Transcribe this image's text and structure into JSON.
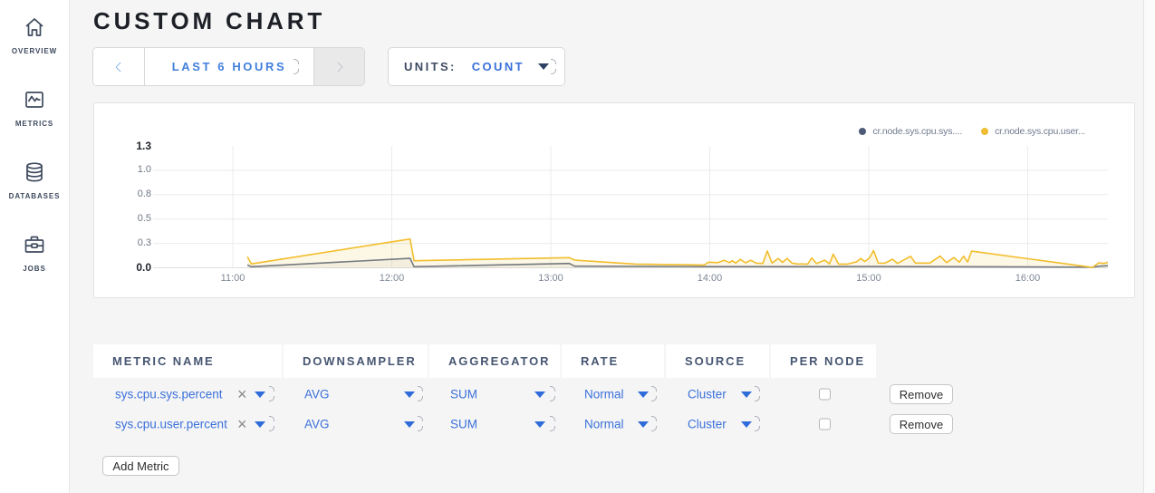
{
  "sidebar": {
    "items": [
      {
        "label": "OVERVIEW",
        "icon": "home-icon"
      },
      {
        "label": "METRICS",
        "icon": "metrics-icon"
      },
      {
        "label": "DATABASES",
        "icon": "database-icon"
      },
      {
        "label": "JOBS",
        "icon": "briefcase-icon"
      }
    ]
  },
  "header": {
    "title": "CUSTOM CHART"
  },
  "toolbar": {
    "time_range": {
      "label": "LAST 6 HOURS"
    },
    "units": {
      "label": "UNITS:",
      "value": "COUNT"
    }
  },
  "colors": {
    "accent_blue": "#3a70d9",
    "navy_text": "#3e4a5e",
    "title_text": "#1d2026",
    "series_yellow": "#f2be2c",
    "series_slate": "#64718c",
    "page_background": "#f5f5f6"
  },
  "chart_data": {
    "type": "line",
    "title": "",
    "xlabel": "",
    "ylabel": "",
    "x_domain_minutes_from_11_00": [
      -30,
      330
    ],
    "x_ticks": [
      "11:00",
      "12:00",
      "13:00",
      "14:00",
      "15:00",
      "16:00"
    ],
    "y_ticks": [
      "0.0",
      "0.3",
      "0.5",
      "0.8",
      "1.0",
      "1.3"
    ],
    "ylim": [
      0,
      1.3
    ],
    "x_axis": "time of day, minutes measured from 11:00",
    "grid": true,
    "legend_position": "top-right",
    "legend": [
      {
        "label": "cr.node.sys.cpu.sys....",
        "color": "#4e5b76"
      },
      {
        "label": "cr.node.sys.cpu.user...",
        "color": "#efbc33"
      }
    ],
    "series": [
      {
        "name": "cr.node.sys.cpu.sys....",
        "color": "#64718c",
        "fill": "rgba(100,113,140,0.07)",
        "points": [
          [
            5.5,
            0.03
          ],
          [
            7,
            0.012
          ],
          [
            66.9,
            0.101
          ],
          [
            68.4,
            0.012
          ],
          [
            127,
            0.046
          ],
          [
            129,
            0.017
          ],
          [
            180,
            0.013
          ],
          [
            240,
            0.014
          ],
          [
            290,
            0.011
          ],
          [
            324.4,
            0.007
          ],
          [
            327,
            0.017
          ],
          [
            331,
            0.023
          ]
        ]
      },
      {
        "name": "cr.node.sys.cpu.user...",
        "color": "#f2be2c",
        "fill": "rgba(242,190,44,0.12)",
        "points": [
          [
            5.5,
            0.119
          ],
          [
            7,
            0.042
          ],
          [
            66.9,
            0.307
          ],
          [
            68.4,
            0.075
          ],
          [
            127,
            0.108
          ],
          [
            129,
            0.082
          ],
          [
            152,
            0.04
          ],
          [
            178,
            0.03
          ],
          [
            179.5,
            0.06
          ],
          [
            183,
            0.055
          ],
          [
            185.5,
            0.08
          ],
          [
            187.5,
            0.055
          ],
          [
            188.5,
            0.075
          ],
          [
            189.8,
            0.05
          ],
          [
            191.5,
            0.09
          ],
          [
            193.5,
            0.053
          ],
          [
            195.5,
            0.08
          ],
          [
            197.5,
            0.05
          ],
          [
            200,
            0.045
          ],
          [
            201.7,
            0.18
          ],
          [
            203.5,
            0.05
          ],
          [
            205.8,
            0.1
          ],
          [
            207.5,
            0.058
          ],
          [
            209.2,
            0.1
          ],
          [
            211,
            0.05
          ],
          [
            213,
            0.042
          ],
          [
            217,
            0.04
          ],
          [
            218.5,
            0.105
          ],
          [
            220.3,
            0.045
          ],
          [
            223.4,
            0.082
          ],
          [
            225.2,
            0.042
          ],
          [
            226.6,
            0.146
          ],
          [
            228.6,
            0.04
          ],
          [
            232,
            0.04
          ],
          [
            235.5,
            0.065
          ],
          [
            237,
            0.1
          ],
          [
            238.5,
            0.068
          ],
          [
            240.3,
            0.105
          ],
          [
            241.8,
            0.185
          ],
          [
            243.6,
            0.05
          ],
          [
            246,
            0.048
          ],
          [
            249,
            0.092
          ],
          [
            250.8,
            0.046
          ],
          [
            255.8,
            0.123
          ],
          [
            257.6,
            0.05
          ],
          [
            263,
            0.05
          ],
          [
            266.9,
            0.125
          ],
          [
            269.4,
            0.055
          ],
          [
            272.1,
            0.11
          ],
          [
            274.2,
            0.06
          ],
          [
            275.8,
            0.125
          ],
          [
            277.3,
            0.062
          ],
          [
            278.8,
            0.178
          ],
          [
            324.4,
            0.004
          ],
          [
            326.8,
            0.053
          ],
          [
            328.4,
            0.047
          ],
          [
            329.6,
            0.051
          ],
          [
            331,
            0.073
          ]
        ]
      }
    ]
  },
  "table": {
    "headers": [
      "METRIC NAME",
      "DOWNSAMPLER",
      "AGGREGATOR",
      "RATE",
      "SOURCE",
      "PER NODE"
    ],
    "rows": [
      {
        "metric": "sys.cpu.sys.percent",
        "downsampler": "AVG",
        "aggregator": "SUM",
        "rate": "Normal",
        "source": "Cluster",
        "per_node": false,
        "remove_label": "Remove"
      },
      {
        "metric": "sys.cpu.user.percent",
        "downsampler": "AVG",
        "aggregator": "SUM",
        "rate": "Normal",
        "source": "Cluster",
        "per_node": false,
        "remove_label": "Remove"
      }
    ],
    "add_button": "Add Metric"
  }
}
